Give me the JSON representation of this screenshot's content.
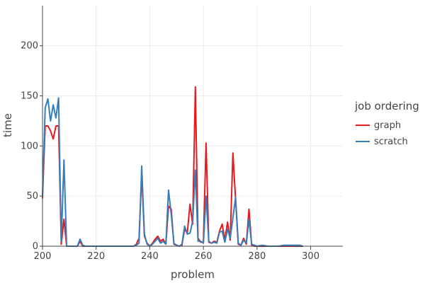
{
  "chart_data": {
    "type": "line",
    "title": "",
    "xlabel": "problem",
    "ylabel": "time",
    "xlim": [
      200,
      312
    ],
    "ylim": [
      0,
      240
    ],
    "x_ticks": [
      200,
      220,
      240,
      260,
      280,
      300
    ],
    "y_ticks": [
      0,
      50,
      100,
      150,
      200
    ],
    "grid": true,
    "legend": {
      "title": "job ordering",
      "position": "right"
    },
    "series": [
      {
        "name": "graph",
        "color": "#e41a1c",
        "points": [
          [
            200,
            48
          ],
          [
            201,
            120
          ],
          [
            202,
            120
          ],
          [
            203,
            115
          ],
          [
            204,
            107
          ],
          [
            205,
            120
          ],
          [
            206,
            120
          ],
          [
            207,
            2
          ],
          [
            208,
            27
          ],
          [
            209,
            0
          ],
          [
            210,
            0
          ],
          [
            211,
            0
          ],
          [
            212,
            0
          ],
          [
            213,
            0
          ],
          [
            214,
            5
          ],
          [
            215,
            0
          ],
          [
            216,
            0
          ],
          [
            218,
            0
          ],
          [
            220,
            0
          ],
          [
            222,
            0
          ],
          [
            224,
            0
          ],
          [
            226,
            0
          ],
          [
            228,
            0
          ],
          [
            230,
            0
          ],
          [
            232,
            0
          ],
          [
            234,
            0
          ],
          [
            235,
            2
          ],
          [
            236,
            8
          ],
          [
            237,
            72
          ],
          [
            238,
            10
          ],
          [
            239,
            3
          ],
          [
            240,
            0
          ],
          [
            241,
            3
          ],
          [
            242,
            7
          ],
          [
            243,
            10
          ],
          [
            244,
            5
          ],
          [
            245,
            7
          ],
          [
            246,
            2
          ],
          [
            247,
            40
          ],
          [
            248,
            37
          ],
          [
            249,
            2
          ],
          [
            250,
            1
          ],
          [
            251,
            0
          ],
          [
            252,
            1
          ],
          [
            253,
            17
          ],
          [
            254,
            13
          ],
          [
            255,
            42
          ],
          [
            256,
            22
          ],
          [
            257,
            159
          ],
          [
            258,
            8
          ],
          [
            259,
            4
          ],
          [
            260,
            4
          ],
          [
            261,
            103
          ],
          [
            262,
            4
          ],
          [
            263,
            3
          ],
          [
            264,
            5
          ],
          [
            265,
            4
          ],
          [
            266,
            15
          ],
          [
            267,
            22
          ],
          [
            268,
            6
          ],
          [
            269,
            24
          ],
          [
            270,
            6
          ],
          [
            271,
            93
          ],
          [
            272,
            47
          ],
          [
            273,
            2
          ],
          [
            274,
            1
          ],
          [
            275,
            8
          ],
          [
            276,
            2
          ],
          [
            277,
            37
          ],
          [
            278,
            1
          ],
          [
            279,
            0
          ],
          [
            280,
            0
          ],
          [
            282,
            0
          ],
          [
            284,
            0
          ],
          [
            286,
            0
          ],
          [
            288,
            0
          ],
          [
            290,
            0
          ],
          [
            292,
            0
          ],
          [
            294,
            0
          ],
          [
            296,
            0
          ],
          [
            297,
            0
          ]
        ]
      },
      {
        "name": "scratch",
        "color": "#377eb8",
        "points": [
          [
            200,
            50
          ],
          [
            201,
            138
          ],
          [
            202,
            147
          ],
          [
            203,
            125
          ],
          [
            204,
            141
          ],
          [
            205,
            128
          ],
          [
            206,
            148
          ],
          [
            207,
            5
          ],
          [
            208,
            86
          ],
          [
            209,
            0
          ],
          [
            210,
            0
          ],
          [
            211,
            0
          ],
          [
            212,
            0
          ],
          [
            213,
            0
          ],
          [
            214,
            7
          ],
          [
            215,
            1
          ],
          [
            216,
            0
          ],
          [
            218,
            0
          ],
          [
            220,
            0
          ],
          [
            222,
            0
          ],
          [
            224,
            0
          ],
          [
            226,
            0
          ],
          [
            228,
            0
          ],
          [
            230,
            0
          ],
          [
            232,
            0
          ],
          [
            234,
            0
          ],
          [
            235,
            1
          ],
          [
            236,
            3
          ],
          [
            237,
            80
          ],
          [
            238,
            12
          ],
          [
            239,
            2
          ],
          [
            240,
            0
          ],
          [
            241,
            2
          ],
          [
            242,
            5
          ],
          [
            243,
            8
          ],
          [
            244,
            3
          ],
          [
            245,
            5
          ],
          [
            246,
            2
          ],
          [
            247,
            56
          ],
          [
            248,
            32
          ],
          [
            249,
            3
          ],
          [
            250,
            1
          ],
          [
            251,
            0
          ],
          [
            252,
            2
          ],
          [
            253,
            20
          ],
          [
            254,
            12
          ],
          [
            255,
            13
          ],
          [
            256,
            25
          ],
          [
            257,
            76
          ],
          [
            258,
            5
          ],
          [
            259,
            5
          ],
          [
            260,
            3
          ],
          [
            261,
            50
          ],
          [
            262,
            5
          ],
          [
            263,
            3
          ],
          [
            264,
            4
          ],
          [
            265,
            3
          ],
          [
            266,
            14
          ],
          [
            267,
            15
          ],
          [
            268,
            4
          ],
          [
            269,
            17
          ],
          [
            270,
            8
          ],
          [
            271,
            28
          ],
          [
            272,
            49
          ],
          [
            273,
            3
          ],
          [
            274,
            1
          ],
          [
            275,
            6
          ],
          [
            276,
            3
          ],
          [
            277,
            27
          ],
          [
            278,
            2
          ],
          [
            279,
            1
          ],
          [
            280,
            0
          ],
          [
            282,
            1
          ],
          [
            284,
            0
          ],
          [
            286,
            0
          ],
          [
            288,
            0
          ],
          [
            290,
            1
          ],
          [
            292,
            1
          ],
          [
            294,
            1
          ],
          [
            296,
            1
          ],
          [
            297,
            0
          ]
        ]
      }
    ]
  }
}
